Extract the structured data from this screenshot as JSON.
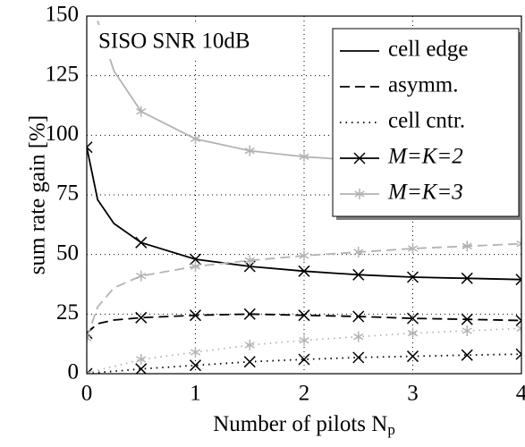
{
  "chart_data": {
    "type": "line",
    "xlabel": {
      "text": "Number of pilots N",
      "subscript": "p"
    },
    "ylabel": "sum rate gain [%]",
    "annotation": "SISO SNR 10dB",
    "x": [
      0,
      0.1,
      0.25,
      0.5,
      1,
      1.5,
      2,
      2.5,
      3,
      3.5,
      4
    ],
    "series": [
      {
        "color": "#000000",
        "dash": "solid",
        "marker": "x",
        "values": [
          95,
          73,
          63,
          55,
          48,
          45,
          43,
          41.5,
          40.5,
          40,
          39.5
        ]
      },
      {
        "color": "#000000",
        "dash": "dashed",
        "marker": "x",
        "values": [
          17,
          21,
          22.5,
          23.5,
          24.5,
          25,
          24.5,
          24,
          23.2,
          22.8,
          22.3
        ]
      },
      {
        "color": "#000000",
        "dash": "dotted",
        "marker": "x",
        "values": [
          0,
          0.5,
          1,
          2,
          3.5,
          5,
          6,
          6.8,
          7.3,
          7.8,
          8.2
        ]
      },
      {
        "color": "#b3b3b3",
        "dash": "solid",
        "marker": "asterisk",
        "values": [
          null,
          148,
          127,
          110,
          98.5,
          93.5,
          91,
          89.5,
          88.5,
          87,
          86
        ]
      },
      {
        "color": "#b3b3b3",
        "dash": "dashed",
        "marker": "asterisk",
        "values": [
          15,
          28,
          36,
          41,
          45,
          47.5,
          49.5,
          51,
          52.5,
          53.5,
          54.5
        ]
      },
      {
        "color": "#b3b3b3",
        "dash": "dotted",
        "marker": "asterisk",
        "values": [
          0,
          1.5,
          3,
          6,
          9,
          12,
          14,
          15.5,
          17,
          18,
          19
        ]
      }
    ],
    "legend": [
      {
        "label": "cell edge",
        "color": "#000000",
        "dash": "solid"
      },
      {
        "label": "asymm.",
        "color": "#000000",
        "dash": "dashed"
      },
      {
        "label": "cell cntr.",
        "color": "#000000",
        "dash": "dotted"
      },
      {
        "label": "M=K=2",
        "color": "#000000",
        "dash": "solid",
        "marker": "x"
      },
      {
        "label": "M=K=3",
        "color": "#b3b3b3",
        "dash": "solid",
        "marker": "asterisk"
      }
    ],
    "legend_position": "upper right",
    "xlim": [
      0,
      4
    ],
    "xticks": [
      0,
      1,
      2,
      3,
      4
    ],
    "ylim": [
      0,
      150
    ],
    "yticks": [
      0,
      25,
      50,
      75,
      100,
      125,
      150
    ],
    "grid": true
  }
}
